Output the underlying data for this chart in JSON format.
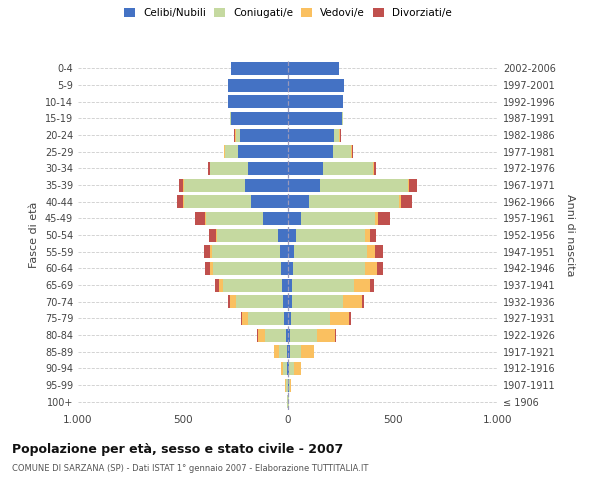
{
  "age_groups": [
    "100+",
    "95-99",
    "90-94",
    "85-89",
    "80-84",
    "75-79",
    "70-74",
    "65-69",
    "60-64",
    "55-59",
    "50-54",
    "45-49",
    "40-44",
    "35-39",
    "30-34",
    "25-29",
    "20-24",
    "15-19",
    "10-14",
    "5-9",
    "0-4"
  ],
  "birth_years": [
    "≤ 1906",
    "1907-1911",
    "1912-1916",
    "1917-1921",
    "1922-1926",
    "1927-1931",
    "1932-1936",
    "1937-1941",
    "1942-1946",
    "1947-1951",
    "1952-1956",
    "1957-1961",
    "1962-1966",
    "1967-1971",
    "1972-1976",
    "1977-1981",
    "1982-1986",
    "1987-1991",
    "1992-1996",
    "1997-2001",
    "2002-2006"
  ],
  "male": {
    "celibi": [
      2,
      2,
      3,
      5,
      10,
      20,
      25,
      30,
      35,
      40,
      50,
      120,
      175,
      205,
      190,
      240,
      230,
      270,
      285,
      285,
      270
    ],
    "coniugati": [
      3,
      8,
      20,
      40,
      100,
      170,
      225,
      280,
      320,
      320,
      290,
      270,
      320,
      290,
      180,
      60,
      20,
      5,
      2,
      0,
      0
    ],
    "vedovi": [
      1,
      3,
      8,
      20,
      35,
      30,
      25,
      20,
      15,
      10,
      5,
      3,
      5,
      3,
      2,
      3,
      2,
      0,
      0,
      0,
      0
    ],
    "divorziati": [
      0,
      0,
      1,
      2,
      2,
      5,
      10,
      20,
      25,
      30,
      30,
      50,
      30,
      20,
      10,
      3,
      3,
      0,
      0,
      0,
      0
    ]
  },
  "female": {
    "nubili": [
      2,
      3,
      5,
      8,
      10,
      15,
      20,
      20,
      25,
      30,
      40,
      60,
      100,
      150,
      165,
      215,
      220,
      255,
      260,
      265,
      245
    ],
    "coniugate": [
      3,
      8,
      25,
      55,
      130,
      185,
      240,
      295,
      340,
      345,
      325,
      355,
      430,
      420,
      240,
      85,
      25,
      8,
      3,
      0,
      0
    ],
    "vedove": [
      1,
      5,
      30,
      60,
      85,
      90,
      90,
      75,
      60,
      40,
      25,
      15,
      10,
      5,
      5,
      3,
      2,
      0,
      0,
      0,
      0
    ],
    "divorziate": [
      0,
      0,
      2,
      3,
      5,
      8,
      12,
      20,
      25,
      35,
      30,
      55,
      50,
      40,
      10,
      5,
      3,
      0,
      0,
      0,
      0
    ]
  },
  "colors": {
    "celibi": "#4472C4",
    "coniugati": "#C5D9A0",
    "vedovi": "#FAC060",
    "divorziati": "#C0504D"
  },
  "xlim": 1000,
  "title": "Popolazione per età, sesso e stato civile - 2007",
  "subtitle": "COMUNE DI SARZANA (SP) - Dati ISTAT 1° gennaio 2007 - Elaborazione TUTTITALIA.IT",
  "ylabel_left": "Fasce di età",
  "ylabel_right": "Anni di nascita",
  "legend_labels": [
    "Celibi/Nubili",
    "Coniugati/e",
    "Vedovi/e",
    "Divorziati/e"
  ],
  "grid_color": "#cccccc"
}
